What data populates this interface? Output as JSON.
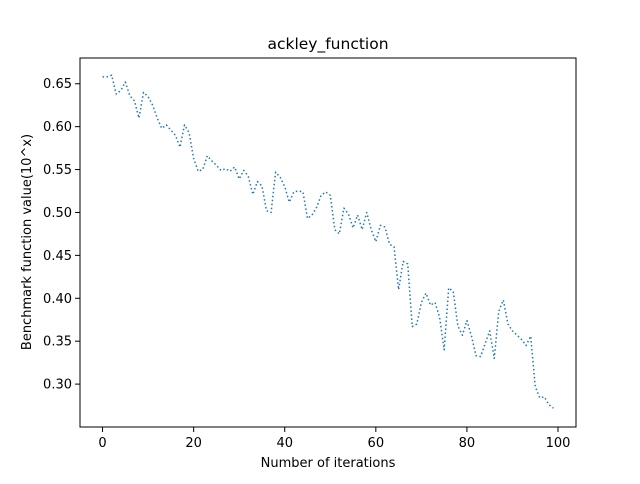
{
  "chart_data": {
    "type": "line",
    "title": "ackley_function",
    "xlabel": "Number of iterations",
    "ylabel": "Benchmark function value(10^x)",
    "xlim": [
      -4.95,
      103.95
    ],
    "ylim": [
      0.25,
      0.68
    ],
    "xticks": [
      0,
      20,
      40,
      60,
      80,
      100
    ],
    "yticks": [
      0.3,
      0.35,
      0.4,
      0.45,
      0.5,
      0.55,
      0.6,
      0.65
    ],
    "grid": false,
    "line_style": "dotted",
    "series": [
      {
        "color": "#1f77b4",
        "x": [
          0,
          1,
          2,
          3,
          4,
          5,
          6,
          7,
          8,
          9,
          10,
          11,
          12,
          13,
          14,
          15,
          16,
          17,
          18,
          19,
          20,
          21,
          22,
          23,
          24,
          25,
          26,
          27,
          28,
          29,
          30,
          31,
          32,
          33,
          34,
          35,
          36,
          37,
          38,
          39,
          40,
          41,
          42,
          43,
          44,
          45,
          46,
          47,
          48,
          49,
          50,
          51,
          52,
          53,
          54,
          55,
          56,
          57,
          58,
          59,
          60,
          61,
          62,
          63,
          64,
          65,
          66,
          67,
          68,
          69,
          70,
          71,
          72,
          73,
          74,
          75,
          76,
          77,
          78,
          79,
          80,
          81,
          82,
          83,
          84,
          85,
          86,
          87,
          88,
          89,
          90,
          91,
          92,
          93,
          94,
          95,
          96,
          97,
          98,
          99
        ],
        "values": [
          0.658,
          0.658,
          0.66,
          0.638,
          0.642,
          0.652,
          0.636,
          0.63,
          0.61,
          0.64,
          0.635,
          0.625,
          0.61,
          0.598,
          0.602,
          0.596,
          0.59,
          0.576,
          0.602,
          0.593,
          0.563,
          0.548,
          0.55,
          0.566,
          0.56,
          0.555,
          0.549,
          0.551,
          0.548,
          0.553,
          0.539,
          0.549,
          0.542,
          0.521,
          0.536,
          0.531,
          0.502,
          0.5,
          0.547,
          0.541,
          0.53,
          0.512,
          0.524,
          0.525,
          0.524,
          0.493,
          0.497,
          0.506,
          0.52,
          0.524,
          0.52,
          0.48,
          0.475,
          0.505,
          0.498,
          0.482,
          0.497,
          0.48,
          0.5,
          0.48,
          0.466,
          0.485,
          0.483,
          0.463,
          0.46,
          0.41,
          0.443,
          0.44,
          0.367,
          0.37,
          0.395,
          0.406,
          0.392,
          0.395,
          0.378,
          0.34,
          0.412,
          0.408,
          0.368,
          0.357,
          0.374,
          0.356,
          0.333,
          0.332,
          0.347,
          0.362,
          0.33,
          0.385,
          0.398,
          0.37,
          0.362,
          0.357,
          0.352,
          0.345,
          0.356,
          0.297,
          0.284,
          0.285,
          0.276,
          0.272
        ]
      }
    ]
  }
}
